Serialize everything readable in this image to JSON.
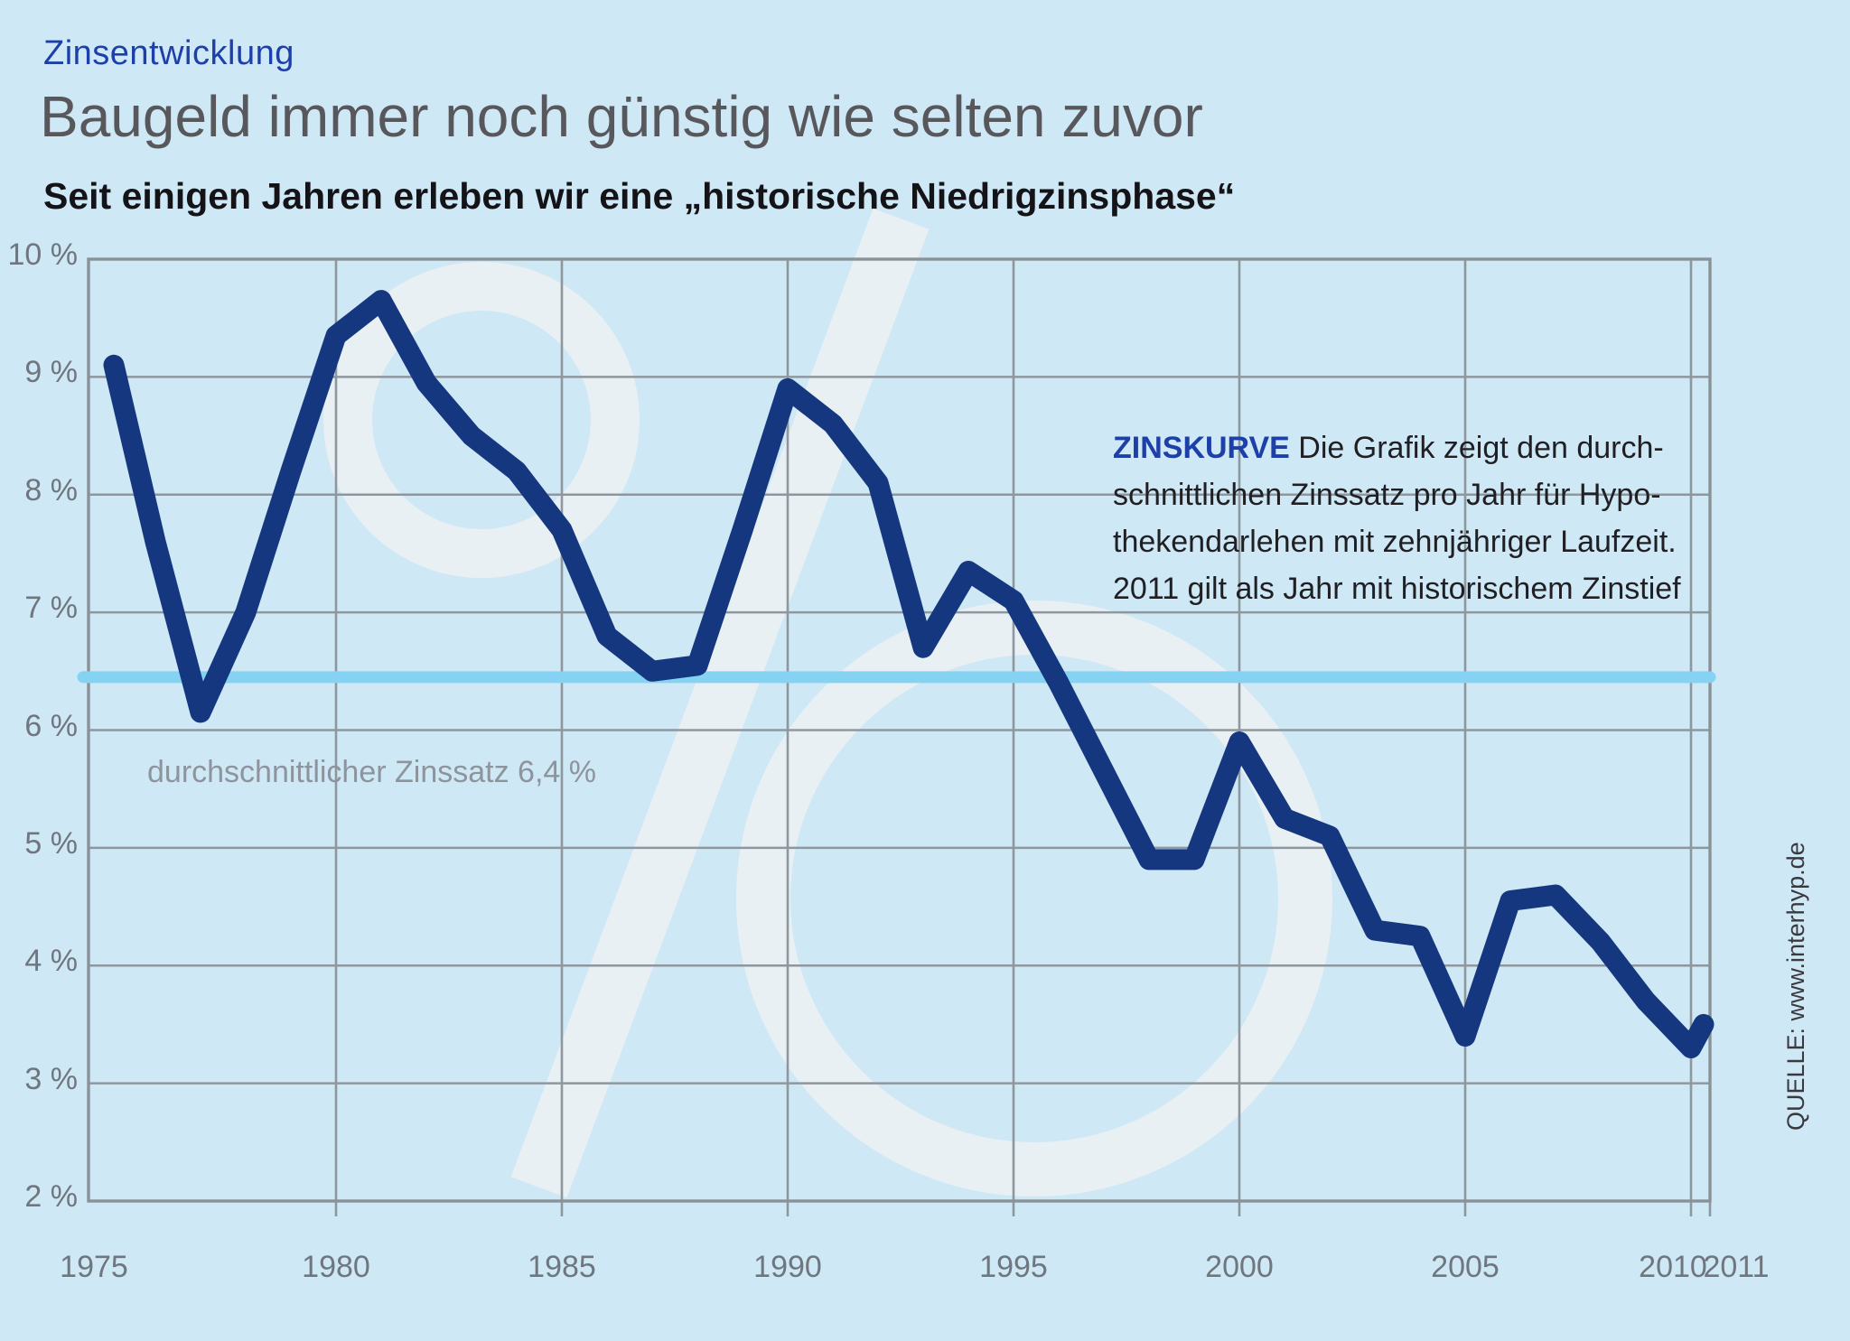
{
  "header": {
    "kicker": "Zinsentwicklung",
    "title": "Baugeld immer noch günstig wie selten zuvor",
    "subtitle": "Seit einigen Jahren erleben wir eine „historische Niedrigzinsphase“"
  },
  "annotation": {
    "label": "ZINSKURVE",
    "line1": " Die Grafik zeigt den durch-",
    "line2": "schnittlichen Zinssatz pro Jahr für Hypo-",
    "line3": "thekendarlehen mit zehnjähriger Laufzeit.",
    "line4": "2011 gilt als Jahr mit historischem Zinstief"
  },
  "average_line": {
    "label": "durchschnittlicher Zinssatz 6,4 %",
    "value_pct": 6.45
  },
  "source": {
    "label": "QUELLE: www.interhyp.de"
  },
  "colors": {
    "background": "#cfe8f6",
    "line": "#14377f",
    "average_line": "#85d2f2",
    "grid": "#8f979e",
    "frame": "#8a9299",
    "accent_blue": "#1d3fa8",
    "watermark": "#ecf0f3"
  },
  "chart_data": {
    "type": "line",
    "title": "Baugeld immer noch günstig wie selten zuvor",
    "x": [
      1975,
      1976,
      1977,
      1978,
      1979,
      1980,
      1981,
      1982,
      1983,
      1984,
      1985,
      1986,
      1987,
      1988,
      1989,
      1990,
      1991,
      1992,
      1993,
      1994,
      1995,
      1996,
      1997,
      1998,
      1999,
      2000,
      2001,
      2002,
      2003,
      2004,
      2005,
      2006,
      2007,
      2008,
      2009,
      2010,
      2011
    ],
    "series": [
      {
        "name": "Zinssatz",
        "values": [
          9.1,
          7.6,
          6.15,
          7.0,
          8.2,
          9.35,
          9.65,
          8.95,
          8.5,
          8.2,
          7.7,
          6.8,
          6.5,
          6.55,
          7.7,
          8.9,
          8.6,
          8.1,
          6.7,
          7.35,
          7.1,
          6.4,
          5.65,
          4.9,
          4.9,
          5.9,
          5.25,
          5.1,
          4.3,
          4.25,
          3.4,
          4.55,
          4.6,
          4.2,
          3.7,
          3.3,
          3.5
        ]
      }
    ],
    "average": 6.4,
    "ylim": [
      2,
      10
    ],
    "xlabel": "",
    "ylabel": "",
    "grid": true,
    "legend": false,
    "y_ticks": [
      "10 %",
      "9 %",
      "8 %",
      "7 %",
      "6 %",
      "5 %",
      "4 %",
      "3 %",
      "2 %"
    ],
    "y_tick_values": [
      10,
      9,
      8,
      7,
      6,
      5,
      4,
      3,
      2
    ],
    "x_ticks": [
      "1975",
      "1980",
      "1985",
      "1990",
      "1995",
      "2000",
      "2005",
      "2010",
      "2011"
    ]
  }
}
